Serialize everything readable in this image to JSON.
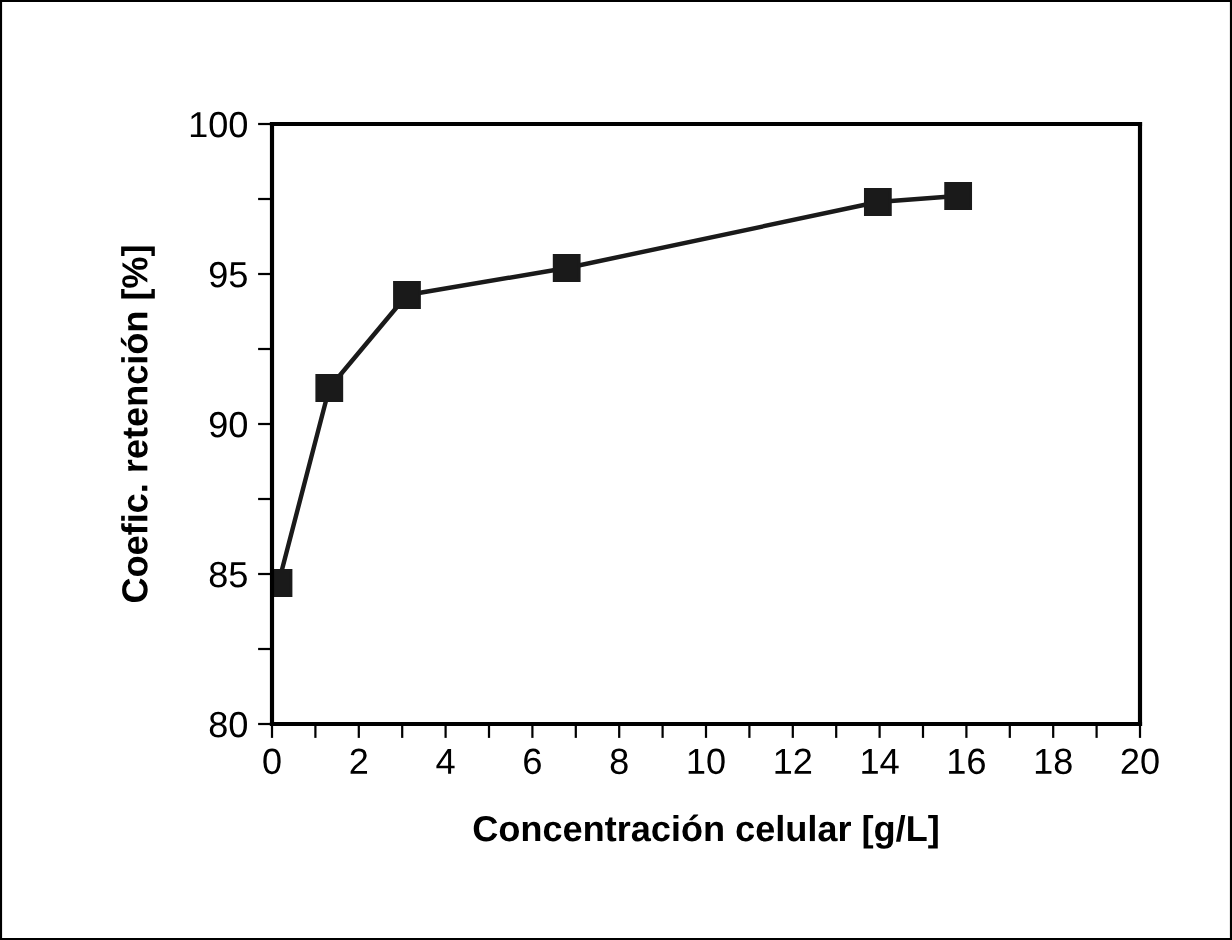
{
  "chart_data": {
    "type": "line",
    "xlabel": "Concentración celular [g/L]",
    "ylabel": "Coefic. retención [%]",
    "x": [
      0.15,
      1.32,
      3.11,
      6.79,
      13.96,
      15.81
    ],
    "series": [
      {
        "color": "#1a1a1a",
        "values": [
          84.7,
          91.2,
          94.3,
          95.2,
          97.4,
          97.6
        ]
      }
    ],
    "marker": "square",
    "line_style": "solid",
    "grid": false,
    "legend": false,
    "xlim": [
      0,
      20
    ],
    "xticks": [
      0,
      {
        "value": 1,
        "label": null
      },
      2,
      {
        "value": 3,
        "label": null
      },
      4,
      {
        "value": 5,
        "label": null
      },
      6,
      {
        "value": 7,
        "label": null
      },
      8,
      {
        "value": 9,
        "label": null
      },
      10,
      {
        "value": 11,
        "label": null
      },
      12,
      {
        "value": 13,
        "label": null
      },
      14,
      {
        "value": 15,
        "label": null
      },
      16,
      {
        "value": 17,
        "label": null
      },
      18,
      {
        "value": 19,
        "label": null
      },
      20
    ],
    "ylim": [
      80,
      100
    ],
    "yticks": [
      80,
      {
        "value": 82.5,
        "label": null
      },
      85,
      {
        "value": 87.5,
        "label": null
      },
      90,
      {
        "value": 92.5,
        "label": null
      },
      95,
      {
        "value": 97.5,
        "label": null
      },
      100
    ]
  }
}
